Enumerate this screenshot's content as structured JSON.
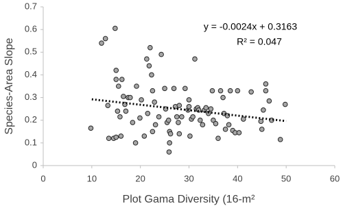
{
  "chart_data": {
    "type": "scatter",
    "x_label": "Plot Gama Diversity (16-m²",
    "y_label": "Species-Area Slope",
    "x": [
      9.8,
      12,
      12.8,
      14.8,
      13.3,
      13.5,
      14.5,
      15,
      16,
      15,
      15,
      15.5,
      15.3,
      15.8,
      16.2,
      16.5,
      16.8,
      17,
      17.5,
      17.9,
      18.4,
      19,
      19.2,
      19.9,
      20.2,
      20.8,
      21.3,
      21.5,
      21.8,
      22,
      22.3,
      22.5,
      22.5,
      22.9,
      23.1,
      23.8,
      24.3,
      25,
      25.2,
      25.5,
      25.8,
      25.9,
      26,
      26,
      26.2,
      26.9,
      27.2,
      27.5,
      27.8,
      28,
      28,
      28.5,
      29.2,
      29.8,
      30,
      30,
      30.2,
      30.5,
      30.8,
      31.2,
      31.5,
      31.8,
      32,
      32.3,
      32.8,
      33.2,
      33.5,
      34,
      34.5,
      34.8,
      35,
      35.5,
      36,
      36.5,
      37,
      37.2,
      37.5,
      37.9,
      38.2,
      38.5,
      39,
      39.5,
      40,
      40.3,
      41.2,
      42.8,
      44.8,
      45,
      45.3,
      45.8,
      45.8,
      46.5,
      47,
      48.8,
      49.8
    ],
    "values": [
      0.165,
      0.54,
      0.56,
      0.605,
      0.265,
      0.12,
      0.12,
      0.125,
      0.13,
      0.42,
      0.38,
      0.35,
      0.24,
      0.215,
      0.38,
      0.305,
      0.27,
      0.24,
      0.3,
      0.3,
      0.19,
      0.1,
      0.35,
      0.21,
      0.29,
      0.13,
      0.47,
      0.23,
      0.44,
      0.52,
      0.4,
      0.33,
      0.15,
      0.28,
      0.18,
      0.215,
      0.49,
      0.34,
      0.25,
      0.19,
      0.2,
      0.06,
      0.1,
      0.15,
      0.14,
      0.34,
      0.26,
      0.215,
      0.19,
      0.265,
      0.14,
      0.215,
      0.34,
      0.245,
      0.29,
      0.26,
      0.13,
      0.205,
      0.215,
      0.47,
      0.25,
      0.255,
      0.245,
      0.2,
      0.18,
      0.245,
      0.255,
      0.23,
      0.25,
      0.33,
      0.2,
      0.185,
      0.12,
      0.33,
      0.3,
      0.23,
      0.16,
      0.22,
      0.18,
      0.33,
      0.155,
      0.145,
      0.33,
      0.145,
      0.205,
      0.325,
      0.195,
      0.16,
      0.245,
      0.33,
      0.36,
      0.285,
      0.2,
      0.115,
      0.27
    ],
    "color": "#a6a6a6",
    "xlim": [
      0,
      60
    ],
    "xticks": [
      0,
      10,
      20,
      30,
      40,
      50,
      60
    ],
    "ylim": [
      0,
      0.7
    ],
    "yticks": [
      0,
      0.1,
      0.2,
      0.3,
      0.4,
      0.5,
      0.6,
      0.7
    ],
    "trendline": {
      "slope": -0.0024,
      "intercept": 0.3163,
      "x": [
        10,
        50
      ],
      "equation": "y = -0.0024x + 0.3163",
      "r_squared": "R² = 0.047"
    }
  }
}
